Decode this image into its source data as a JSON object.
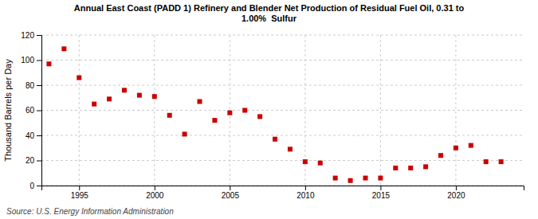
{
  "chart_data": {
    "type": "scatter",
    "title": "Annual East Coast (PADD 1) Refinery and Blender Net Production of Residual Fuel Oil, 0.31 to\n1.00%  Sulfur",
    "y_label": "Thousand Barrels per Day",
    "annotations": [
      "Source: U.S. Energy Information Administration"
    ],
    "x": [
      1993,
      1994,
      1995,
      1996,
      1997,
      1998,
      1999,
      2000,
      2001,
      2002,
      2003,
      2004,
      2005,
      2006,
      2007,
      2008,
      2009,
      2010,
      2011,
      2012,
      2013,
      2014,
      2015,
      2016,
      2017,
      2018,
      2019,
      2020,
      2021,
      2022,
      2023
    ],
    "values": [
      97,
      109,
      86,
      65,
      69,
      76,
      72,
      71,
      56,
      41,
      67,
      52,
      58,
      60,
      55,
      37,
      29,
      19,
      18,
      6,
      4,
      6,
      6,
      14,
      14,
      15,
      24,
      30,
      32,
      19,
      19
    ],
    "color": "#cc0000",
    "marker": "square",
    "xlim": [
      1992.5,
      2024.5
    ],
    "xticks": [
      1995,
      2000,
      2005,
      2010,
      2015,
      2020
    ],
    "ylim": [
      0,
      120
    ],
    "yticks": [
      0,
      20,
      40,
      60,
      80,
      100,
      120
    ],
    "grid": true
  }
}
